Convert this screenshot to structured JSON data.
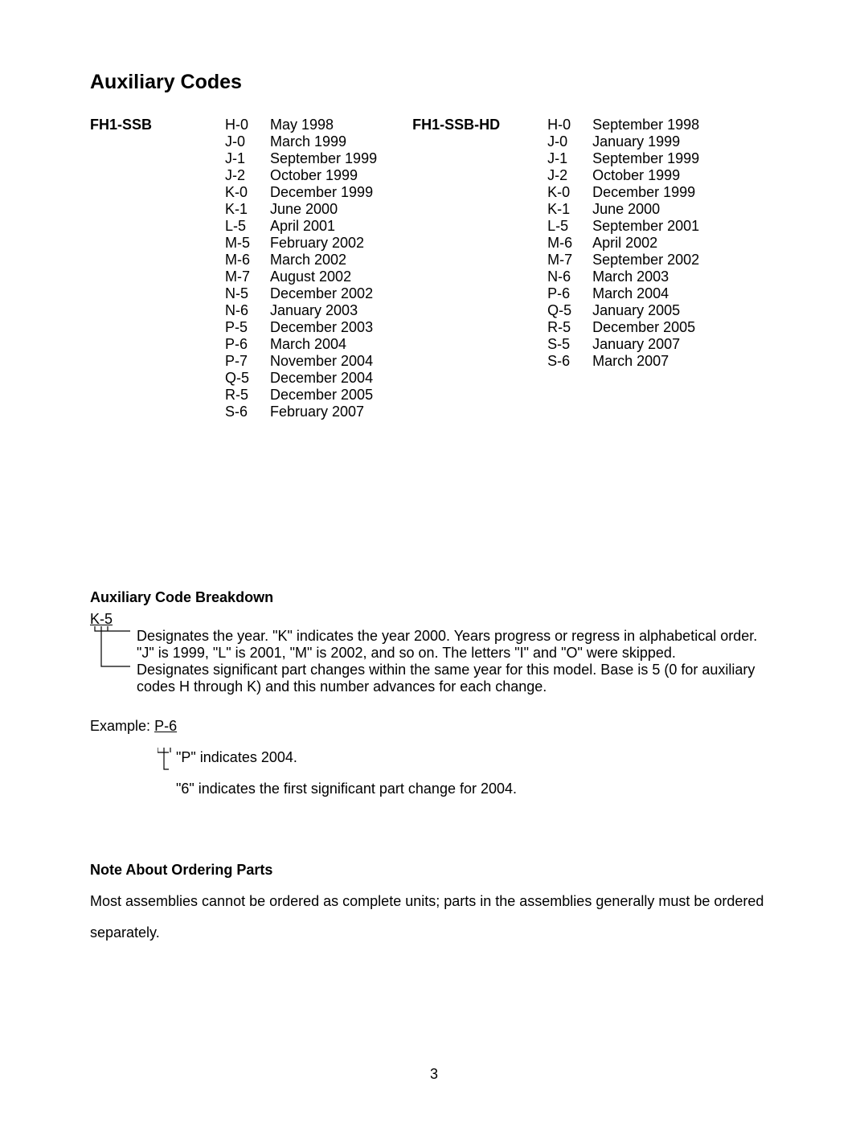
{
  "title": "Auxiliary Codes",
  "page_number": "3",
  "colors": {
    "text": "#000000",
    "bg": "#ffffff"
  },
  "tables": [
    {
      "model": "FH1-SSB",
      "rows": [
        {
          "code": "H-0",
          "date": "May 1998"
        },
        {
          "code": "J-0",
          "date": "March 1999"
        },
        {
          "code": "J-1",
          "date": "September 1999"
        },
        {
          "code": "J-2",
          "date": "October 1999"
        },
        {
          "code": "K-0",
          "date": "December 1999"
        },
        {
          "code": "K-1",
          "date": "June 2000"
        },
        {
          "code": "L-5",
          "date": "April 2001"
        },
        {
          "code": "M-5",
          "date": "February 2002"
        },
        {
          "code": "M-6",
          "date": "March 2002"
        },
        {
          "code": "M-7",
          "date": "August 2002"
        },
        {
          "code": "N-5",
          "date": "December 2002"
        },
        {
          "code": "N-6",
          "date": "January 2003"
        },
        {
          "code": "P-5",
          "date": "December 2003"
        },
        {
          "code": "P-6",
          "date": "March 2004"
        },
        {
          "code": "P-7",
          "date": "November 2004"
        },
        {
          "code": "Q-5",
          "date": "December 2004"
        },
        {
          "code": "R-5",
          "date": "December 2005"
        },
        {
          "code": "S-6",
          "date": "February 2007"
        }
      ]
    },
    {
      "model": "FH1-SSB-HD",
      "rows": [
        {
          "code": "H-0",
          "date": "September 1998"
        },
        {
          "code": "J-0",
          "date": "January 1999"
        },
        {
          "code": "J-1",
          "date": "September 1999"
        },
        {
          "code": "J-2",
          "date": "October 1999"
        },
        {
          "code": "K-0",
          "date": "December 1999"
        },
        {
          "code": "K-1",
          "date": "June 2000"
        },
        {
          "code": "L-5",
          "date": "September 2001"
        },
        {
          "code": "M-6",
          "date": "April 2002"
        },
        {
          "code": "M-7",
          "date": "September 2002"
        },
        {
          "code": "N-6",
          "date": "March 2003"
        },
        {
          "code": "P-6",
          "date": "March 2004"
        },
        {
          "code": "Q-5",
          "date": "January 2005"
        },
        {
          "code": "R-5",
          "date": "December 2005"
        },
        {
          "code": "S-5",
          "date": "January 2007"
        },
        {
          "code": "S-6",
          "date": "March 2007"
        }
      ]
    }
  ],
  "breakdown": {
    "heading": "Auxiliary Code Breakdown",
    "sample_code": "K-5",
    "line1": "Designates the year. \"K\" indicates the year 2000. Years progress or regress in alphabetical order.",
    "line2": "\"J\" is 1999, \"L\" is 2001, \"M\" is 2002, and so on. The letters \"I\" and \"O\" were skipped.",
    "line3": "Designates significant part changes within the same year for this model. Base is 5 (0 for auxiliary",
    "line4": "codes H through K) and this number advances for each change.",
    "example_label": "Example:",
    "example_code": "P-6",
    "example_line1": "\"P\" indicates 2004.",
    "example_line2": "\"6\" indicates the first significant part change for 2004."
  },
  "note": {
    "heading": "Note About Ordering Parts",
    "body1": "Most assemblies cannot be ordered as complete units; parts in the assemblies generally must be ordered",
    "body2": "separately."
  }
}
